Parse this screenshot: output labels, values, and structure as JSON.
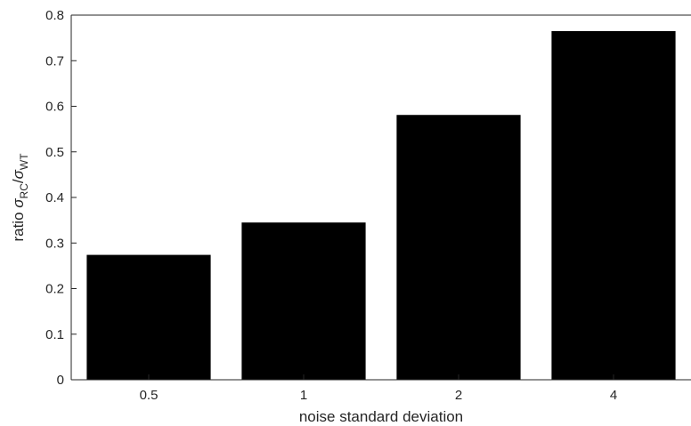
{
  "chart_data": {
    "type": "bar",
    "categories": [
      "0.5",
      "1",
      "2",
      "4"
    ],
    "values": [
      0.274,
      0.345,
      0.581,
      0.765
    ],
    "xlabel": "noise standard deviation",
    "ylabel": {
      "prefix": "ratio ",
      "sym": "σ",
      "sub1": "RC",
      "slash": "/",
      "sub2": "WT"
    },
    "ylim": [
      0,
      0.8
    ],
    "yticks": [
      "0",
      "0.1",
      "0.2",
      "0.3",
      "0.4",
      "0.5",
      "0.6",
      "0.7",
      "0.8"
    ],
    "bar_color": "#000000",
    "grid": false,
    "legend": "none"
  }
}
